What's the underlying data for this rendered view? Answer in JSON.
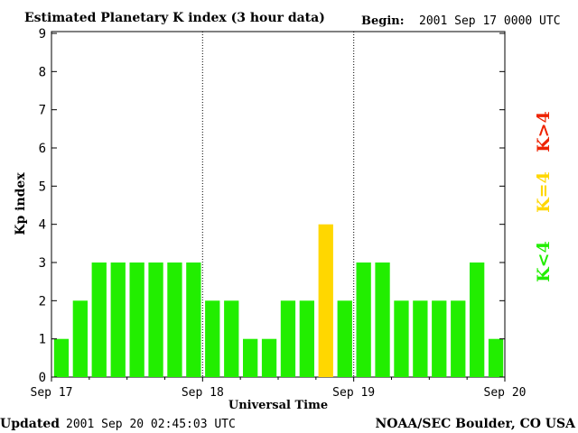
{
  "header": {
    "title": "Estimated Planetary K index (3 hour data)",
    "begin_label": "Begin:",
    "begin_value": "2001 Sep 17 0000 UTC"
  },
  "footer": {
    "updated_label": "Updated",
    "updated_value": "2001 Sep 20 02:45:03 UTC",
    "source": "NOAA/SEC Boulder, CO USA"
  },
  "legend": {
    "low": "K<4",
    "mid": "K=4",
    "high": "K>4"
  },
  "colors": {
    "low": "#22ee00",
    "mid": "#ffd700",
    "high": "#ee2200",
    "axis": "#000000",
    "background": "#ffffff"
  },
  "chart_data": {
    "type": "bar",
    "title": "Estimated Planetary K index (3 hour data)",
    "xlabel": "Universal Time",
    "ylabel": "Kp index",
    "ylim": [
      0,
      9
    ],
    "yticks": [
      0,
      1,
      2,
      3,
      4,
      5,
      6,
      7,
      8,
      9
    ],
    "x_tick_labels": [
      "Sep 17",
      "Sep 18",
      "Sep 19",
      "Sep 20"
    ],
    "bar_interval_hours": 3,
    "values": [
      1,
      2,
      3,
      3,
      3,
      3,
      3,
      3,
      2,
      2,
      1,
      1,
      2,
      2,
      4,
      2,
      3,
      3,
      2,
      2,
      2,
      2,
      3,
      1
    ],
    "day_separators": "dotted",
    "grid": false
  }
}
